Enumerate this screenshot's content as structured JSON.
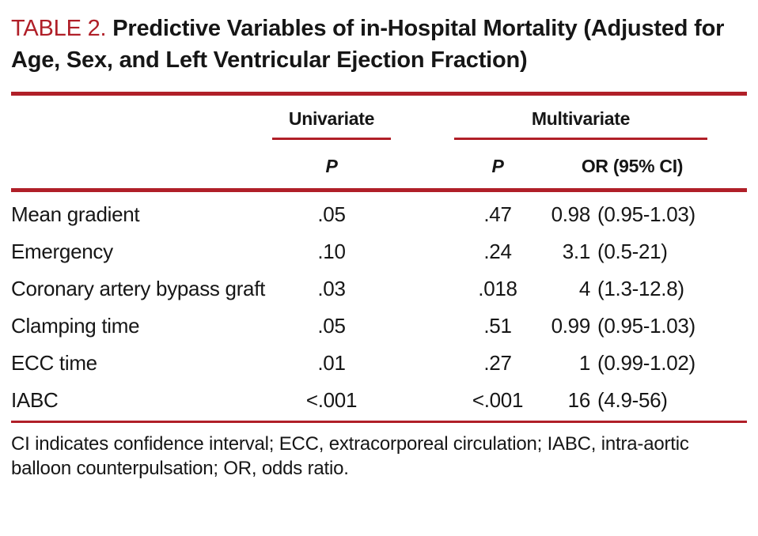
{
  "colors": {
    "accent_red": "#b01f28"
  },
  "title": {
    "label": "TABLE 2.",
    "text": "Predictive Variables of in-Hospital Mortality (Adjusted for Age, Sex, and Left Ventricular Ejection Fraction)"
  },
  "table": {
    "group_headers": {
      "univariate": "Univariate",
      "multivariate": "Multivariate"
    },
    "col_headers": {
      "univariate_p": "P",
      "multivariate_p": "P",
      "or": "OR (95% CI)"
    },
    "rows": [
      {
        "label": "Mean gradient",
        "uni_p": ".05",
        "multi_p": ".47",
        "or_value": "0.98",
        "or_ci": "(0.95-1.03)"
      },
      {
        "label": "Emergency",
        "uni_p": ".10",
        "multi_p": ".24",
        "or_value": "3.1",
        "or_ci": "(0.5-21)"
      },
      {
        "label": "Coronary artery bypass graft",
        "uni_p": ".03",
        "multi_p": ".018",
        "or_value": "4",
        "or_ci": "(1.3-12.8)"
      },
      {
        "label": "Clamping time",
        "uni_p": ".05",
        "multi_p": ".51",
        "or_value": "0.99",
        "or_ci": "(0.95-1.03)"
      },
      {
        "label": "ECC time",
        "uni_p": ".01",
        "multi_p": ".27",
        "or_value": "1",
        "or_ci": "(0.99-1.02)"
      },
      {
        "label": "IABC",
        "uni_p": "<.001",
        "multi_p": "<.001",
        "or_value": "16",
        "or_ci": "(4.9-56)"
      }
    ]
  },
  "footnote": "CI indicates confidence interval; ECC, extracorporeal circulation; IABC, intra-aortic balloon counterpulsation; OR, odds ratio."
}
